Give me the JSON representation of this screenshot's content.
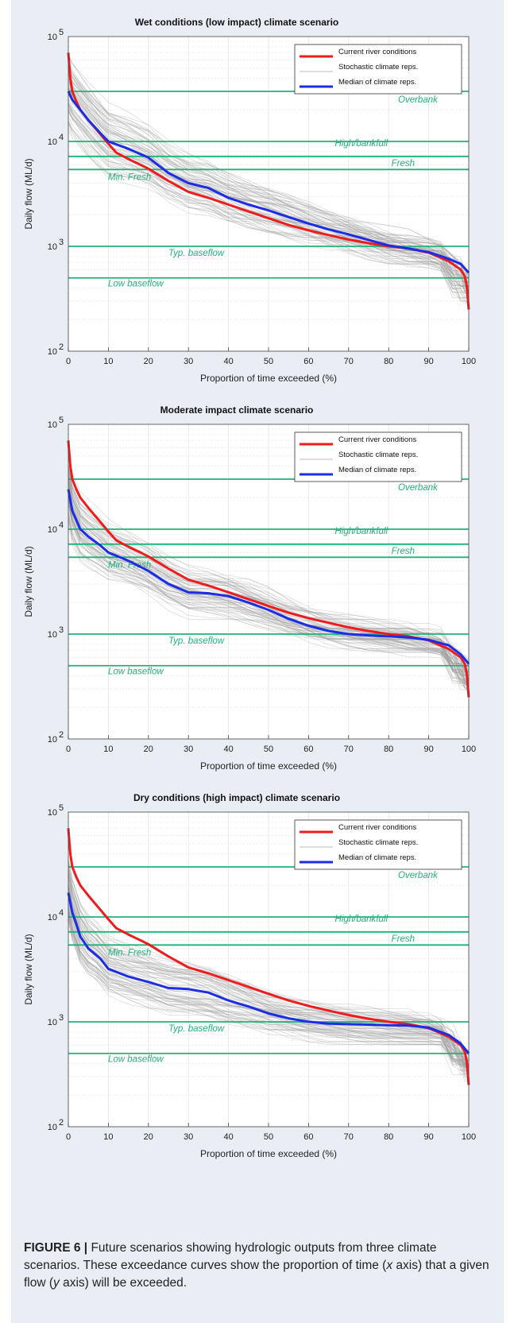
{
  "chart_data": [
    {
      "type": "line",
      "title": "Wet conditions (low impact) climate scenario",
      "xlabel": "Proportion of time exceeded (%)",
      "ylabel": "Daily flow (ML/d)",
      "xlim": [
        0,
        100
      ],
      "ylim": [
        100,
        100000
      ],
      "y_scale": "log",
      "grid": true,
      "legend_position": "top-right",
      "x_ticks": [
        "0",
        "10",
        "20",
        "30",
        "40",
        "50",
        "60",
        "70",
        "80",
        "90",
        "100"
      ],
      "y_tick_mantissa": [
        "10",
        "10",
        "10",
        "10"
      ],
      "y_tick_exponents": [
        "2",
        "3",
        "4",
        "5"
      ],
      "legend": [
        "Current river conditions",
        "Stochastic climate reps.",
        "Median of climate reps."
      ],
      "colors": {
        "current": "#ee1c1c",
        "stochastic": "#bdbdbd",
        "median": "#1c2de6",
        "threshold": "#1fb27a"
      },
      "thresholds": [
        {
          "name": "Overbank",
          "value": 30000
        },
        {
          "name": "High/bankfull",
          "value": 10000
        },
        {
          "name": "Fresh",
          "value": 7200
        },
        {
          "name": "Min. Fresh",
          "value": 5400
        },
        {
          "name": "Typ. baseflow",
          "value": 1000
        },
        {
          "name": "Low baseflow",
          "value": 500
        }
      ],
      "series": [
        {
          "name": "Current river conditions",
          "x": [
            0,
            0.5,
            1,
            2,
            3,
            5,
            7,
            10,
            12,
            15,
            18,
            20,
            25,
            30,
            35,
            40,
            45,
            50,
            55,
            60,
            65,
            70,
            75,
            80,
            85,
            90,
            95,
            98,
            99,
            99.5,
            100
          ],
          "y": [
            70000,
            40000,
            30000,
            24000,
            20000,
            16000,
            13000,
            9500,
            7800,
            6800,
            6000,
            5500,
            4200,
            3300,
            2900,
            2500,
            2150,
            1850,
            1600,
            1420,
            1280,
            1160,
            1070,
            1000,
            950,
            870,
            720,
            600,
            520,
            420,
            250
          ]
        },
        {
          "name": "Median of climate reps.",
          "x": [
            0,
            1,
            3,
            5,
            8,
            10,
            15,
            20,
            25,
            30,
            35,
            40,
            45,
            50,
            55,
            60,
            65,
            70,
            75,
            80,
            85,
            90,
            95,
            98,
            100
          ],
          "y": [
            30000,
            25000,
            20000,
            16000,
            12000,
            10000,
            8500,
            7000,
            5000,
            4000,
            3600,
            2900,
            2500,
            2200,
            1900,
            1650,
            1450,
            1300,
            1150,
            1020,
            950,
            880,
            760,
            680,
            560
          ]
        }
      ]
    },
    {
      "type": "line",
      "title": "Moderate impact climate scenario",
      "xlabel": "Proportion of time exceeded (%)",
      "ylabel": "Daily flow (ML/d)",
      "xlim": [
        0,
        100
      ],
      "ylim": [
        100,
        100000
      ],
      "y_scale": "log",
      "grid": true,
      "legend_position": "top-right",
      "x_ticks": [
        "0",
        "10",
        "20",
        "30",
        "40",
        "50",
        "60",
        "70",
        "80",
        "90",
        "100"
      ],
      "y_tick_mantissa": [
        "10",
        "10",
        "10",
        "10"
      ],
      "y_tick_exponents": [
        "2",
        "3",
        "4",
        "5"
      ],
      "legend": [
        "Current river conditions",
        "Stochastic climate reps.",
        "Median of climate reps."
      ],
      "colors": {
        "current": "#ee1c1c",
        "stochastic": "#bdbdbd",
        "median": "#1c2de6",
        "threshold": "#1fb27a"
      },
      "thresholds": [
        {
          "name": "Overbank",
          "value": 30000
        },
        {
          "name": "High/bankfull",
          "value": 10000
        },
        {
          "name": "Fresh",
          "value": 7200
        },
        {
          "name": "Min. Fresh",
          "value": 5400
        },
        {
          "name": "Typ. baseflow",
          "value": 1000
        },
        {
          "name": "Low baseflow",
          "value": 500
        }
      ],
      "series": [
        {
          "name": "Current river conditions",
          "x": [
            0,
            0.5,
            1,
            2,
            3,
            5,
            7,
            10,
            12,
            15,
            18,
            20,
            25,
            30,
            35,
            40,
            45,
            50,
            55,
            60,
            65,
            70,
            75,
            80,
            85,
            90,
            95,
            98,
            99,
            99.5,
            100
          ],
          "y": [
            70000,
            40000,
            30000,
            24000,
            20000,
            16000,
            13000,
            9500,
            7800,
            6800,
            6000,
            5500,
            4200,
            3300,
            2900,
            2500,
            2150,
            1850,
            1600,
            1420,
            1280,
            1160,
            1070,
            1000,
            950,
            870,
            720,
            600,
            520,
            420,
            250
          ]
        },
        {
          "name": "Median of climate reps.",
          "x": [
            0,
            1,
            3,
            5,
            8,
            10,
            15,
            20,
            25,
            30,
            35,
            40,
            45,
            50,
            55,
            60,
            65,
            70,
            75,
            80,
            85,
            90,
            95,
            98,
            100
          ],
          "y": [
            24000,
            15000,
            10000,
            8500,
            7000,
            6000,
            5000,
            4000,
            3000,
            2500,
            2450,
            2300,
            2000,
            1700,
            1400,
            1200,
            1070,
            1000,
            970,
            950,
            930,
            880,
            780,
            640,
            520
          ]
        }
      ]
    },
    {
      "type": "line",
      "title": "Dry conditions (high impact) climate scenario",
      "xlabel": "Proportion of time exceeded (%)",
      "ylabel": "Daily flow (ML/d)",
      "xlim": [
        0,
        100
      ],
      "ylim": [
        100,
        100000
      ],
      "y_scale": "log",
      "grid": true,
      "legend_position": "top-right",
      "x_ticks": [
        "0",
        "10",
        "20",
        "30",
        "40",
        "50",
        "60",
        "70",
        "80",
        "90",
        "100"
      ],
      "y_tick_mantissa": [
        "10",
        "10",
        "10",
        "10"
      ],
      "y_tick_exponents": [
        "2",
        "3",
        "4",
        "5"
      ],
      "legend": [
        "Current river conditions",
        "Stochastic climate reps.",
        "Median of climate reps."
      ],
      "colors": {
        "current": "#ee1c1c",
        "stochastic": "#bdbdbd",
        "median": "#1c2de6",
        "threshold": "#1fb27a"
      },
      "thresholds": [
        {
          "name": "Overbank",
          "value": 30000
        },
        {
          "name": "High/bankfull",
          "value": 10000
        },
        {
          "name": "Fresh",
          "value": 7200
        },
        {
          "name": "Min. Fresh",
          "value": 5400
        },
        {
          "name": "Typ. baseflow",
          "value": 1000
        },
        {
          "name": "Low baseflow",
          "value": 500
        }
      ],
      "series": [
        {
          "name": "Current river conditions",
          "x": [
            0,
            0.5,
            1,
            2,
            3,
            5,
            7,
            10,
            12,
            15,
            18,
            20,
            25,
            30,
            35,
            40,
            45,
            50,
            55,
            60,
            65,
            70,
            75,
            80,
            85,
            90,
            95,
            98,
            99,
            99.5,
            100
          ],
          "y": [
            70000,
            40000,
            30000,
            24000,
            20000,
            16000,
            13000,
            9500,
            7800,
            6800,
            6000,
            5500,
            4200,
            3300,
            2900,
            2500,
            2150,
            1850,
            1600,
            1420,
            1280,
            1160,
            1070,
            1000,
            950,
            870,
            720,
            600,
            520,
            420,
            250
          ]
        },
        {
          "name": "Median of climate reps.",
          "x": [
            0,
            1,
            2,
            3,
            5,
            8,
            10,
            15,
            20,
            25,
            30,
            35,
            40,
            45,
            50,
            55,
            60,
            65,
            70,
            75,
            80,
            85,
            90,
            95,
            98,
            100
          ],
          "y": [
            17000,
            11000,
            8500,
            6500,
            5000,
            4000,
            3200,
            2700,
            2400,
            2100,
            2050,
            1900,
            1600,
            1400,
            1200,
            1080,
            1000,
            960,
            950,
            940,
            930,
            920,
            880,
            750,
            620,
            500
          ]
        }
      ]
    }
  ],
  "caption": {
    "label": "FIGURE 6 |",
    "text_before_x": " Future scenarios showing hydrologic outputs from three climate scenarios. These exceedance curves show the proportion of time (",
    "x": "x",
    "text_mid": " axis) that a given flow (",
    "y": "y",
    "text_after_y": " axis) will be exceeded."
  }
}
